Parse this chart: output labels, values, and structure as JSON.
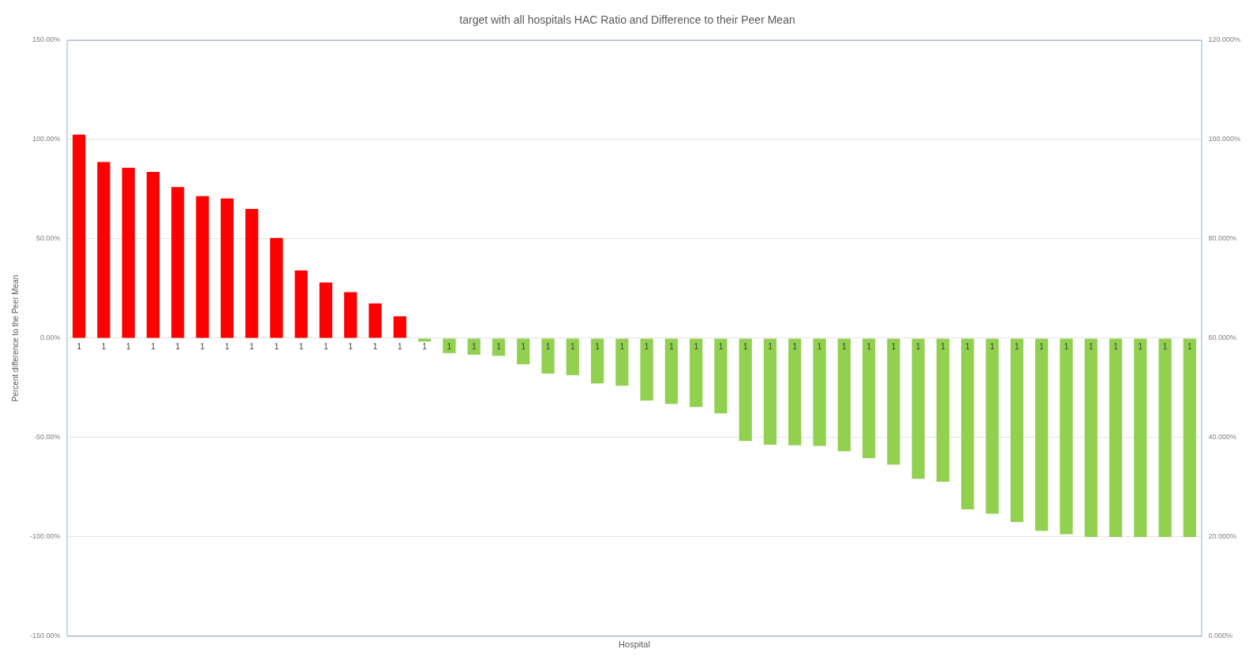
{
  "chart_data": {
    "type": "bar",
    "title": "target with all hospitals HAC Ratio and Difference to their Peer Mean",
    "xlabel": "Hospital",
    "ylabel": "Percent difference to the Peer Mean",
    "categories": [
      "1",
      "1",
      "1",
      "1",
      "1",
      "1",
      "1",
      "1",
      "1",
      "1",
      "1",
      "1",
      "1",
      "1",
      "1",
      "1",
      "1",
      "1",
      "1",
      "1",
      "1",
      "1",
      "1",
      "1",
      "1",
      "1",
      "1",
      "1",
      "1",
      "1",
      "1",
      "1",
      "1",
      "1",
      "1",
      "1",
      "1",
      "1",
      "1",
      "1",
      "1",
      "1",
      "1",
      "1",
      "1",
      "1"
    ],
    "values": [
      102.4,
      88.6,
      85.8,
      83.7,
      76.0,
      71.5,
      70.3,
      65.0,
      50.4,
      34.1,
      28.0,
      23.2,
      17.5,
      11.0,
      -1.7,
      -7.5,
      -8.3,
      -8.9,
      -13.1,
      -17.8,
      -18.6,
      -22.8,
      -23.9,
      -31.4,
      -33.1,
      -34.7,
      -37.8,
      -51.7,
      -53.6,
      -53.9,
      -54.2,
      -56.9,
      -60.3,
      -63.6,
      -70.8,
      -72.2,
      -86.1,
      -88.3,
      -92.5,
      -96.9,
      -98.6,
      -100,
      -100,
      -100,
      -100,
      -100
    ],
    "colors": [
      "#ff0000",
      "#ff0000",
      "#ff0000",
      "#ff0000",
      "#ff0000",
      "#ff0000",
      "#ff0000",
      "#ff0000",
      "#ff0000",
      "#ff0000",
      "#ff0000",
      "#ff0000",
      "#ff0000",
      "#ff0000",
      "#92d050",
      "#92d050",
      "#92d050",
      "#92d050",
      "#92d050",
      "#92d050",
      "#92d050",
      "#92d050",
      "#92d050",
      "#92d050",
      "#92d050",
      "#92d050",
      "#92d050",
      "#92d050",
      "#92d050",
      "#92d050",
      "#92d050",
      "#92d050",
      "#92d050",
      "#92d050",
      "#92d050",
      "#92d050",
      "#92d050",
      "#92d050",
      "#92d050",
      "#92d050",
      "#92d050",
      "#92d050",
      "#92d050",
      "#92d050",
      "#92d050",
      "#92d050"
    ],
    "ylim": [
      -150,
      150
    ],
    "yticks": [
      {
        "value": -150,
        "label": "-150.00%"
      },
      {
        "value": -100,
        "label": "-100.00%"
      },
      {
        "value": -50,
        "label": "-50.00%"
      },
      {
        "value": 0,
        "label": "0.00%"
      },
      {
        "value": 50,
        "label": "50.00%"
      },
      {
        "value": 100,
        "label": "100.00%"
      },
      {
        "value": 150,
        "label": "150.00%"
      }
    ],
    "y2lim": [
      0,
      120
    ],
    "y2ticks": [
      {
        "value": 0,
        "label": "0.000%"
      },
      {
        "value": 20,
        "label": "20.000%"
      },
      {
        "value": 40,
        "label": "40.000%"
      },
      {
        "value": 60,
        "label": "60.000%"
      },
      {
        "value": 80,
        "label": "80.000%"
      },
      {
        "value": 100,
        "label": "100.000%"
      },
      {
        "value": 120,
        "label": "120.000%"
      }
    ],
    "grid": "y",
    "legend": false
  }
}
